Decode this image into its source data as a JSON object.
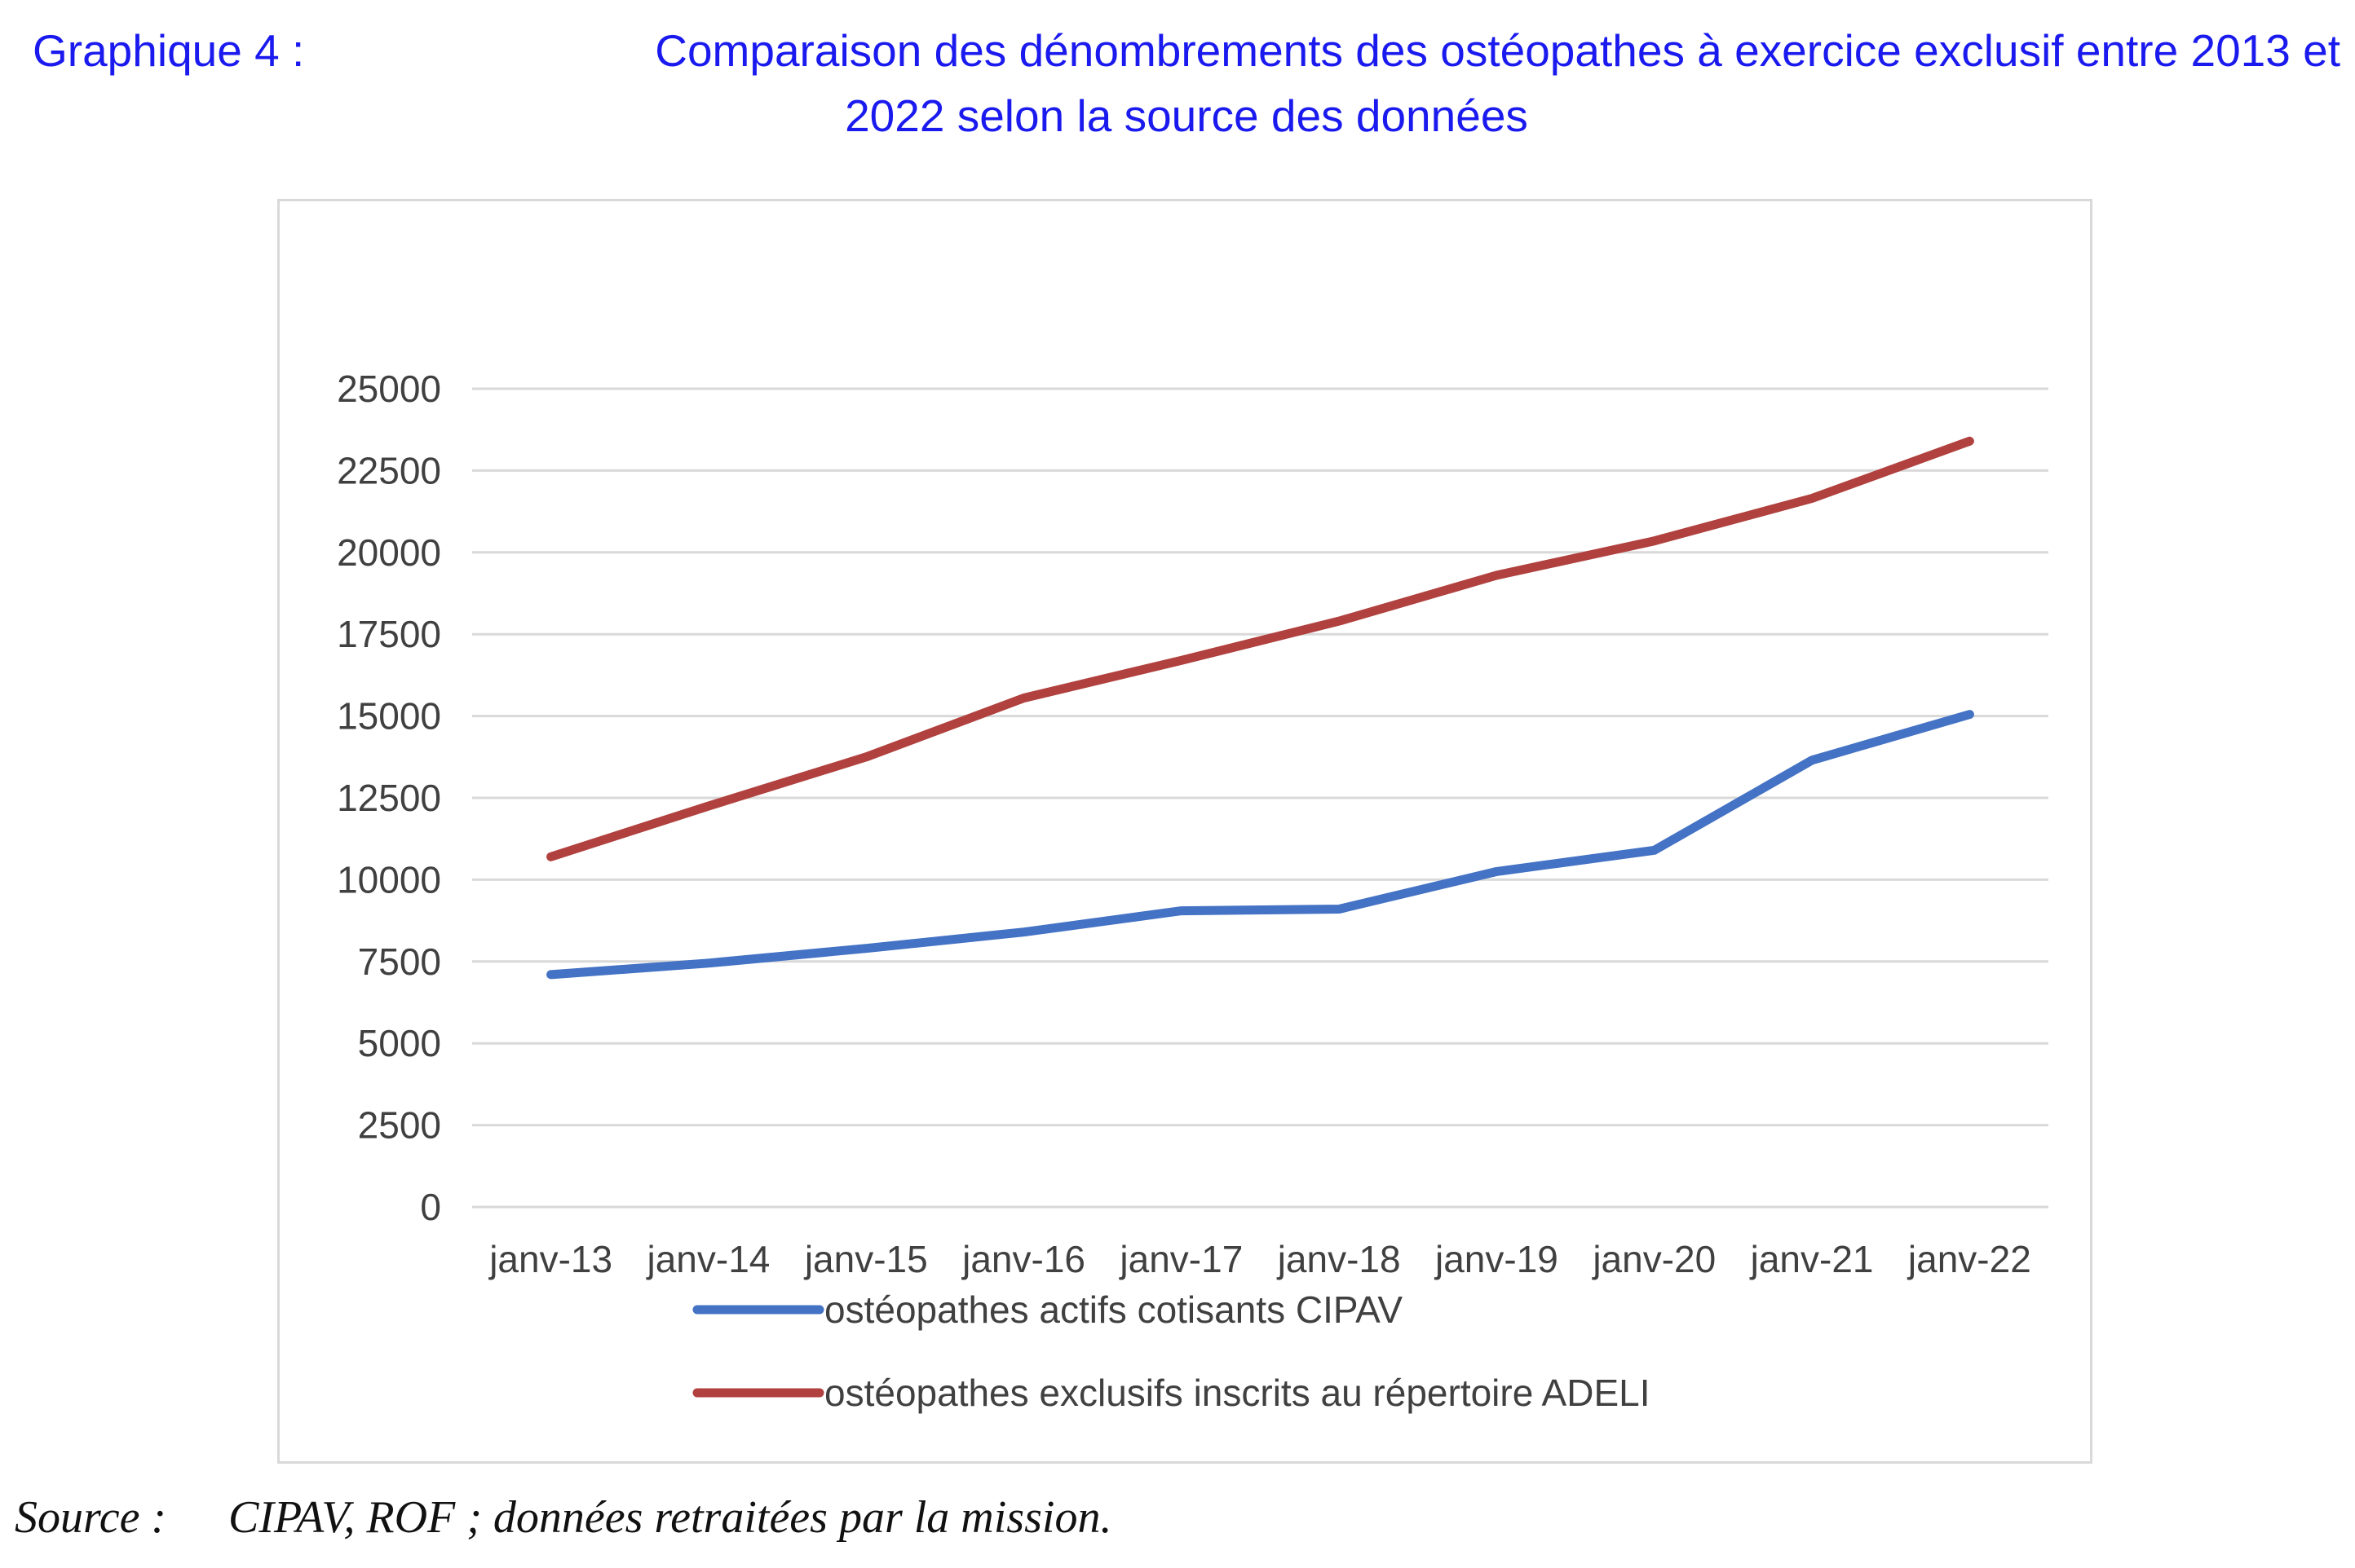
{
  "heading": {
    "figure_label": "Graphique 4 :",
    "title_line1": "Comparaison des dénombrements des ostéopathes à exercice exclusif entre 2013 et",
    "title_line2": "2022 selon la source des données"
  },
  "source": {
    "label": "Source :",
    "text": "CIPAV, ROF ; données retraitées par la mission."
  },
  "colors": {
    "title": "#1a1aef",
    "cipav": "#4472c4",
    "adeli": "#b0413e",
    "grid": "#d9d9d9",
    "axis_text": "#404040"
  },
  "chart_data": {
    "type": "line",
    "title": "",
    "xlabel": "",
    "ylabel": "",
    "categories": [
      "janv-13",
      "janv-14",
      "janv-15",
      "janv-16",
      "janv-17",
      "janv-18",
      "janv-19",
      "janv-20",
      "janv-21",
      "janv-22"
    ],
    "ylim": [
      0,
      25000
    ],
    "yticks": [
      "0",
      "2500",
      "5000",
      "7500",
      "10000",
      "12500",
      "15000",
      "17500",
      "20000",
      "22500",
      "25000"
    ],
    "grid": true,
    "legend_position": "bottom",
    "series": [
      {
        "name": "ostéopathes actifs cotisants CIPAV",
        "color": "#4472c4",
        "values": [
          7100,
          7450,
          7900,
          8400,
          9050,
          9100,
          10250,
          10900,
          13650,
          15050
        ]
      },
      {
        "name": "ostéopathes exclusifs inscrits au répertoire ADELI",
        "color": "#b0413e",
        "values": [
          10700,
          12250,
          13750,
          15550,
          16700,
          17900,
          19300,
          20350,
          21650,
          23400
        ]
      }
    ]
  }
}
